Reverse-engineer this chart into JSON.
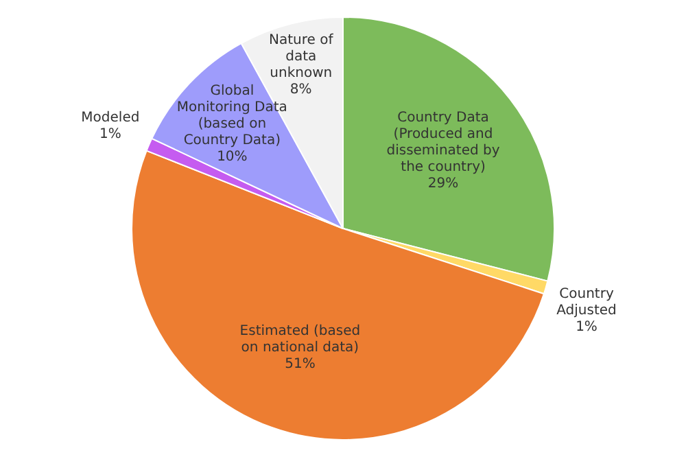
{
  "chart_data": {
    "type": "pie",
    "categories": [
      "Country Data (Produced and disseminated by the country)",
      "Country Adjusted",
      "Estimated (based on national data)",
      "Modeled",
      "Global Monitoring Data (based on Country Data)",
      "Nature of data unknown"
    ],
    "values": [
      29,
      1,
      51,
      1,
      10,
      8
    ],
    "colors": [
      "#7dbb5b",
      "#ffd966",
      "#ed7d31",
      "#c55cf0",
      "#9e9cfb",
      "#f2f2f2"
    ],
    "value_labels": [
      "29%",
      "1%",
      "51%",
      "1%",
      "10%",
      "8%"
    ],
    "legend": false
  }
}
